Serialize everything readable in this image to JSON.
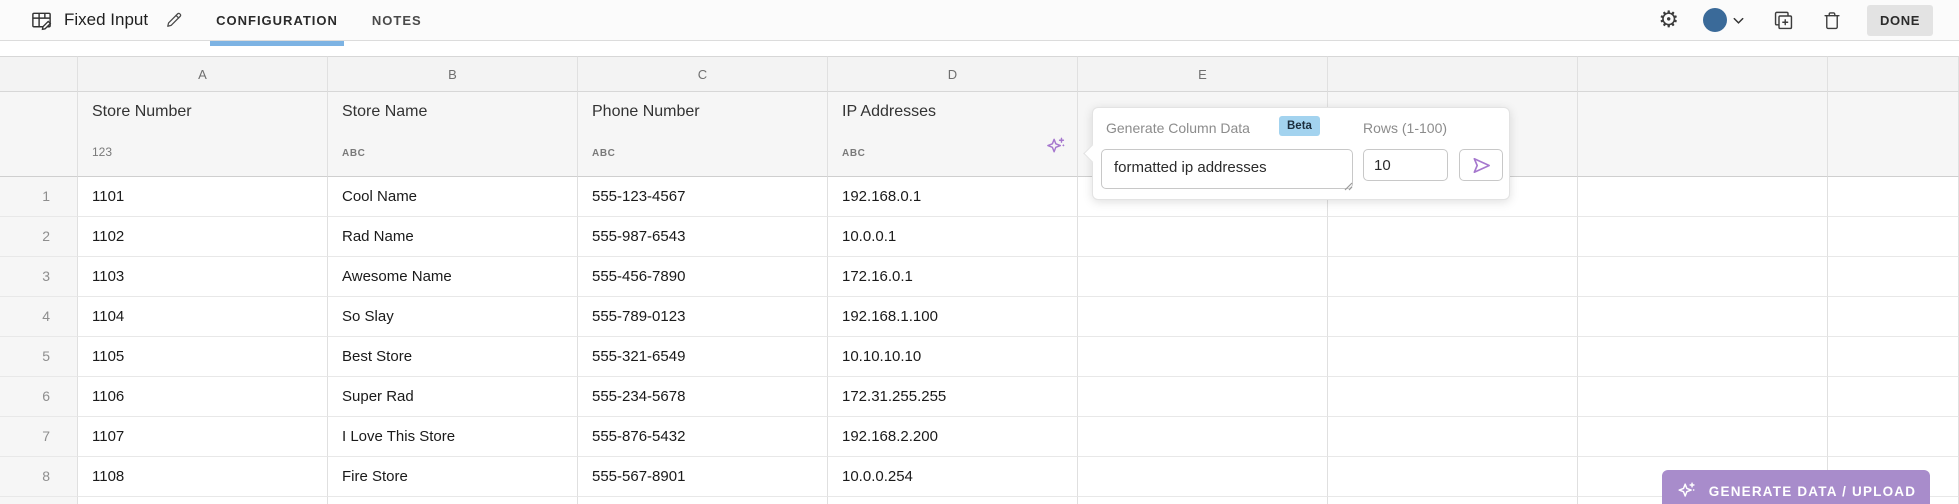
{
  "toolbar": {
    "title": "Fixed Input",
    "tabs": [
      {
        "label": "CONFIGURATION",
        "active": true
      },
      {
        "label": "NOTES",
        "active": false
      }
    ],
    "done_label": "DONE"
  },
  "sheet": {
    "letter_cells": [
      "A",
      "B",
      "C",
      "D",
      "E",
      "",
      "",
      ""
    ],
    "columns": [
      {
        "letter": "A",
        "name": "Store Number",
        "type": "123",
        "has_sparkle": false
      },
      {
        "letter": "B",
        "name": "Store Name",
        "type": "ABC",
        "has_sparkle": false
      },
      {
        "letter": "C",
        "name": "Phone Number",
        "type": "ABC",
        "has_sparkle": false
      },
      {
        "letter": "D",
        "name": "IP Addresses",
        "type": "ABC",
        "has_sparkle": true
      }
    ],
    "rows": [
      {
        "num": "1",
        "cells": [
          "1101",
          "Cool Name",
          "555-123-4567",
          "192.168.0.1"
        ]
      },
      {
        "num": "2",
        "cells": [
          "1102",
          "Rad Name",
          "555-987-6543",
          "10.0.0.1"
        ]
      },
      {
        "num": "3",
        "cells": [
          "1103",
          "Awesome Name",
          "555-456-7890",
          "172.16.0.1"
        ]
      },
      {
        "num": "4",
        "cells": [
          "1104",
          "So Slay",
          "555-789-0123",
          "192.168.1.100"
        ]
      },
      {
        "num": "5",
        "cells": [
          "1105",
          "Best Store",
          "555-321-6549",
          "10.10.10.10"
        ]
      },
      {
        "num": "6",
        "cells": [
          "1106",
          "Super Rad",
          "555-234-5678",
          "172.31.255.255"
        ]
      },
      {
        "num": "7",
        "cells": [
          "1107",
          "I Love This Store",
          "555-876-5432",
          "192.168.2.200"
        ]
      },
      {
        "num": "8",
        "cells": [
          "1108",
          "Fire Store",
          "555-567-8901",
          "10.0.0.254"
        ]
      }
    ]
  },
  "popup": {
    "title": "Generate Column Data",
    "badge": "Beta",
    "rows_label": "Rows (1-100)",
    "prompt_value": "formatted ip addresses",
    "rows_value": "10"
  },
  "generate_button": {
    "label": "GENERATE DATA / UPLOAD"
  },
  "colors": {
    "accent_purple": "#a678ce",
    "accent_purple_light": "#a88ccb",
    "tab_blue": "#7db3e3",
    "beta_blue": "#a3d3ef",
    "avatar_blue": "#3a6a99"
  }
}
